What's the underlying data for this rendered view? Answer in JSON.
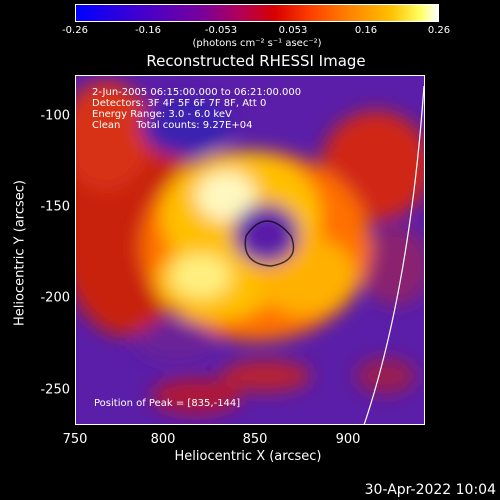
{
  "colorbar": {
    "ticks": [
      "-0.26",
      "-0.16",
      "-0.053",
      "0.053",
      "0.16",
      "0.26"
    ],
    "unit_label": "(photons cm⁻² s⁻¹ asec⁻²)"
  },
  "title": "Reconstructed RHESSI Image",
  "annotations": {
    "time_range": "2-Jun-2005 06:15:00.000 to 06:21:00.000",
    "detectors": "Detectors: 3F 4F 5F 6F 7F 8F, Att 0",
    "energy_range": "Energy Range: 3.0 - 6.0 keV",
    "clean_counts": "Clean     Total counts: 9.27E+04",
    "peak_position": "Position of Peak = [835,-144]"
  },
  "axes": {
    "x_label": "Heliocentric X (arcsec)",
    "y_label": "Heliocentric Y (arcsec)",
    "x_ticks": [
      "750",
      "800",
      "850",
      "900"
    ],
    "y_ticks": [
      "-100",
      "-150",
      "-200",
      "-250"
    ]
  },
  "footer": "30-Apr-2022 10:04"
}
